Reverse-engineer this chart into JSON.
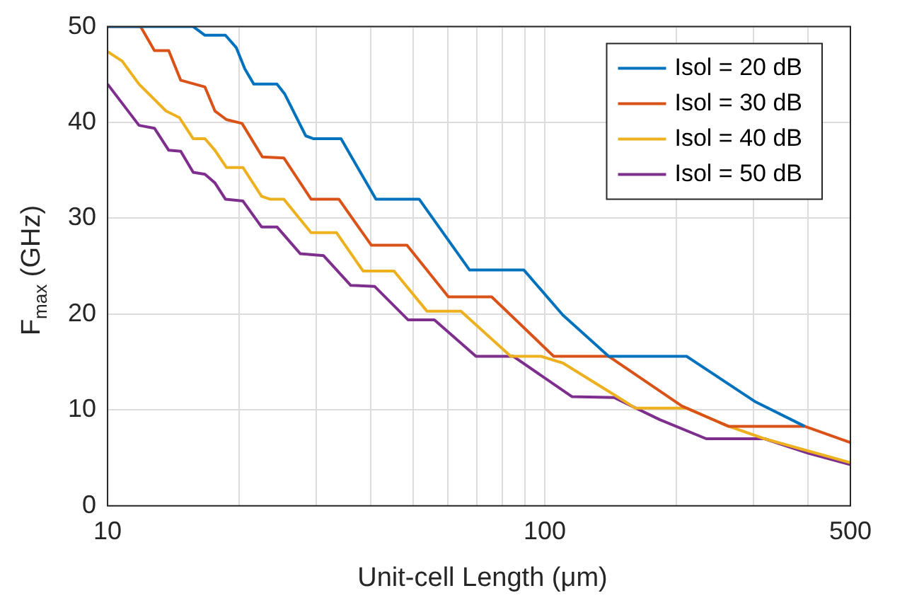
{
  "chart_data": {
    "type": "line",
    "xlabel": "Unit-cell Length (μm)",
    "ylabel": "F$_{max}$ (GHz)",
    "log": "x",
    "grid": true,
    "legend": "top right",
    "xlim": [
      10,
      500
    ],
    "xticks": [
      10,
      {
        "value": 20,
        "label": null
      },
      {
        "value": 30,
        "label": null
      },
      {
        "value": 40,
        "label": null
      },
      {
        "value": 50,
        "label": null
      },
      {
        "value": 60,
        "label": null
      },
      {
        "value": 70,
        "label": null
      },
      {
        "value": 80,
        "label": null
      },
      {
        "value": 90,
        "label": null
      },
      100,
      {
        "value": 200,
        "label": null
      },
      {
        "value": 300,
        "label": null
      },
      {
        "value": 400,
        "label": null
      },
      500
    ],
    "ylim": [
      0,
      50
    ],
    "yticks": [
      0,
      10,
      20,
      30,
      40,
      50
    ],
    "series": [
      {
        "name": "Isol = 20 dB",
        "color": "#0072bd",
        "x": [
          10,
          15.7,
          16.7,
          18.6,
          19.7,
          20.6,
          21.6,
          24.4,
          25.4,
          28.4,
          29.6,
          34.2,
          41.1,
          51.6,
          67.3,
          89.6,
          110,
          140,
          211,
          302,
          393
        ],
        "values": [
          50,
          50,
          49.1,
          49.1,
          47.8,
          45.6,
          44,
          44,
          43,
          38.6,
          38.3,
          38.3,
          32,
          32,
          24.6,
          24.6,
          19.9,
          15.6,
          15.6,
          10.9,
          8.3
        ]
      },
      {
        "name": "Isol = 30 dB",
        "color": "#d95319",
        "x": [
          10,
          11.9,
          12.8,
          13.8,
          14.7,
          16.7,
          17.6,
          18.7,
          20.3,
          22.6,
          25.3,
          29.2,
          33.8,
          40.1,
          48.4,
          60.2,
          75.6,
          90,
          104.8,
          140,
          206,
          263,
          393,
          500
        ],
        "values": [
          50,
          50,
          47.5,
          47.5,
          44.4,
          43.7,
          41.2,
          40.3,
          39.9,
          36.4,
          36.3,
          32,
          32,
          27.2,
          27.2,
          21.8,
          21.8,
          18.5,
          15.6,
          15.6,
          10.4,
          8.3,
          8.3,
          6.6
        ]
      },
      {
        "name": "Isol = 40 dB",
        "color": "#edb120",
        "x": [
          10,
          10.8,
          11.8,
          13.6,
          14.6,
          15.7,
          16.7,
          17.6,
          18.7,
          20.4,
          22.5,
          23.5,
          25.3,
          29.2,
          33.4,
          38.4,
          45.2,
          53.8,
          64.3,
          83.6,
          98,
          110,
          144,
          161,
          211,
          260,
          318,
          500
        ],
        "values": [
          47.4,
          46.4,
          44,
          41.2,
          40.5,
          38.3,
          38.3,
          37.1,
          35.3,
          35.3,
          32.3,
          32,
          32,
          28.5,
          28.5,
          24.5,
          24.5,
          20.3,
          20.3,
          15.6,
          15.6,
          14.9,
          11.6,
          10.2,
          10.2,
          8.4,
          7,
          4.5
        ]
      },
      {
        "name": "Isol = 50 dB",
        "color": "#7e2f8e",
        "x": [
          10,
          11.8,
          12.8,
          13.8,
          14.7,
          15.7,
          16.7,
          17.6,
          18.6,
          20.4,
          22.5,
          24.4,
          27.6,
          31.2,
          36,
          40.8,
          48.7,
          55.9,
          69.6,
          84.7,
          115.3,
          144,
          183,
          234,
          318,
          400,
          500
        ],
        "values": [
          44,
          39.7,
          39.4,
          37.1,
          37,
          34.8,
          34.6,
          33.7,
          32,
          31.8,
          29.1,
          29.1,
          26.3,
          26.1,
          23,
          22.9,
          19.4,
          19.4,
          15.6,
          15.6,
          11.4,
          11.3,
          9,
          7,
          7,
          5.5,
          4.3
        ]
      }
    ]
  }
}
